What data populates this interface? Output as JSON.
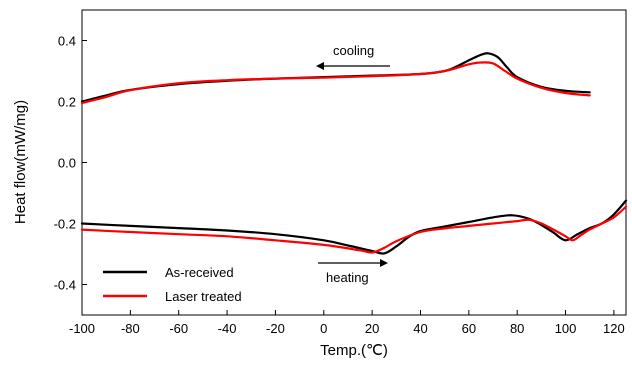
{
  "chart_data": {
    "type": "line",
    "xlabel": "Temp.(℃)",
    "ylabel": "Heat flow(mW/mg)",
    "xlim": [
      -100,
      125
    ],
    "ylim": [
      -0.5,
      0.5
    ],
    "x_ticks": [
      -100,
      -80,
      -60,
      -40,
      -20,
      0,
      20,
      40,
      60,
      80,
      100,
      120
    ],
    "y_ticks": [
      -0.4,
      -0.2,
      0.0,
      0.2,
      0.4
    ],
    "x_tick_labels": [
      "-100",
      "-80",
      "-60",
      "-40",
      "-20",
      "0",
      "20",
      "40",
      "60",
      "80",
      "100",
      "120"
    ],
    "y_tick_labels": [
      "-0.4",
      "-0.2",
      "0.0",
      "0.2",
      "0.4"
    ],
    "grid": false,
    "legend_position": "bottom-left",
    "annotations": [
      {
        "text": "cooling",
        "arrow": "left"
      },
      {
        "text": "heating",
        "arrow": "right"
      }
    ],
    "series": [
      {
        "name": "As-received",
        "color": "#000000",
        "segments": [
          {
            "label": "cooling",
            "x": [
              -100,
              -90,
              -80,
              -60,
              -40,
              -20,
              0,
              20,
              40,
              50,
              55,
              60,
              65,
              68,
              72,
              76,
              80,
              90,
              100,
              110
            ],
            "y": [
              0.2,
              0.22,
              0.238,
              0.257,
              0.268,
              0.275,
              0.28,
              0.285,
              0.29,
              0.3,
              0.315,
              0.335,
              0.353,
              0.358,
              0.345,
              0.31,
              0.28,
              0.248,
              0.235,
              0.23
            ]
          },
          {
            "label": "heating",
            "x": [
              -100,
              -80,
              -60,
              -40,
              -20,
              0,
              10,
              20,
              25,
              30,
              35,
              40,
              50,
              60,
              70,
              78,
              85,
              90,
              95,
              100,
              105,
              110,
              115,
              120,
              125
            ],
            "y": [
              -0.2,
              -0.208,
              -0.215,
              -0.223,
              -0.235,
              -0.255,
              -0.272,
              -0.29,
              -0.298,
              -0.275,
              -0.245,
              -0.225,
              -0.21,
              -0.195,
              -0.18,
              -0.173,
              -0.185,
              -0.205,
              -0.23,
              -0.255,
              -0.235,
              -0.215,
              -0.2,
              -0.17,
              -0.125
            ]
          }
        ]
      },
      {
        "name": "Laser treated",
        "color": "#ff0000",
        "segments": [
          {
            "label": "cooling",
            "x": [
              -100,
              -90,
              -80,
              -60,
              -40,
              -20,
              0,
              20,
              40,
              50,
              55,
              60,
              65,
              70,
              75,
              80,
              90,
              100,
              110
            ],
            "y": [
              0.195,
              0.215,
              0.237,
              0.26,
              0.27,
              0.275,
              0.278,
              0.283,
              0.29,
              0.3,
              0.31,
              0.322,
              0.328,
              0.325,
              0.3,
              0.275,
              0.245,
              0.228,
              0.22
            ]
          },
          {
            "label": "heating",
            "x": [
              -100,
              -80,
              -60,
              -40,
              -20,
              0,
              15,
              20,
              25,
              30,
              40,
              50,
              60,
              70,
              80,
              85,
              90,
              95,
              100,
              103,
              106,
              110,
              115,
              120,
              125
            ],
            "y": [
              -0.22,
              -0.228,
              -0.235,
              -0.242,
              -0.255,
              -0.27,
              -0.288,
              -0.295,
              -0.28,
              -0.258,
              -0.228,
              -0.216,
              -0.208,
              -0.2,
              -0.192,
              -0.188,
              -0.2,
              -0.22,
              -0.242,
              -0.255,
              -0.24,
              -0.22,
              -0.2,
              -0.18,
              -0.145
            ]
          }
        ]
      }
    ]
  }
}
